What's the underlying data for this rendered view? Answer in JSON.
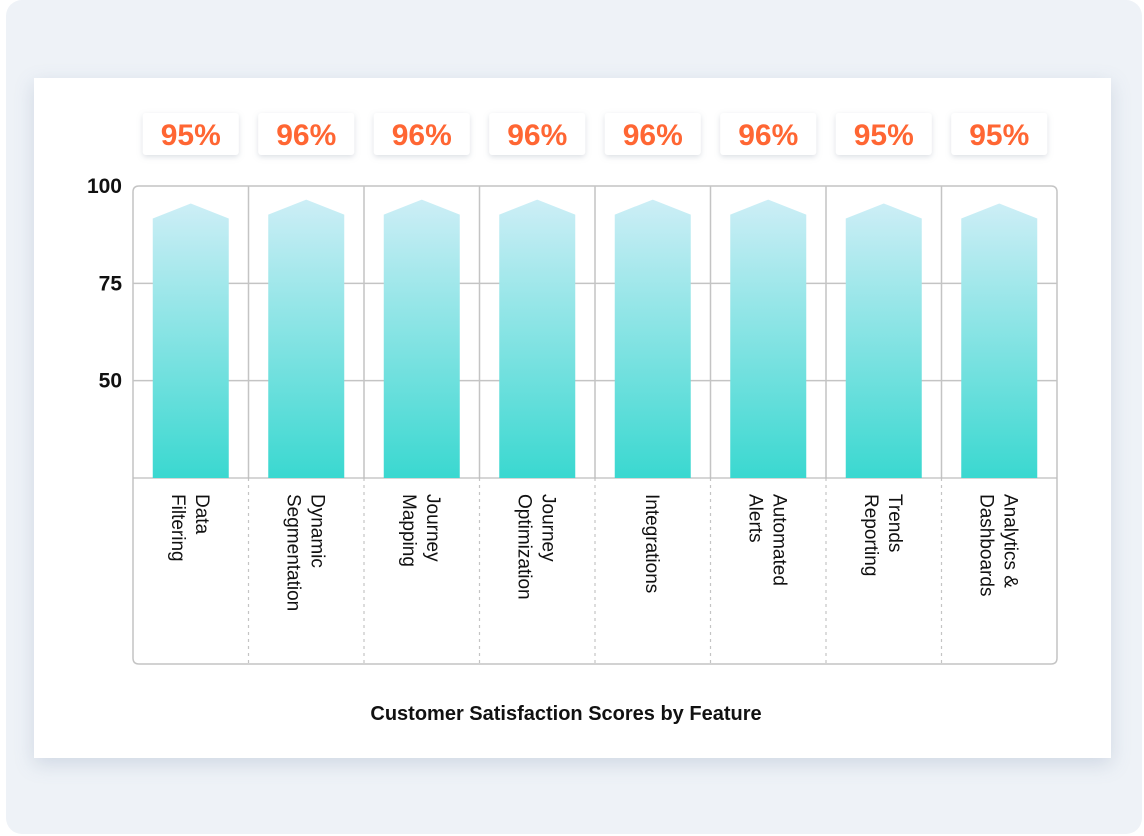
{
  "chart_data": {
    "type": "bar",
    "title": "Customer Satisfaction Scores by Feature",
    "categories": [
      [
        "Data",
        "Filtering"
      ],
      [
        "Dynamic",
        "Segmentation"
      ],
      [
        "Journey",
        "Mapping"
      ],
      [
        "Journey",
        "Optimization"
      ],
      [
        "Integrations"
      ],
      [
        "Automated",
        "Alerts"
      ],
      [
        "Trends",
        "Reporting"
      ],
      [
        "Analytics &",
        "Dashboards"
      ]
    ],
    "values": [
      95,
      96,
      96,
      96,
      96,
      96,
      95,
      95
    ],
    "value_labels": [
      "95%",
      "96%",
      "96%",
      "96%",
      "96%",
      "96%",
      "95%",
      "95%"
    ],
    "yticks": [
      "100",
      "75",
      "50"
    ],
    "ylim": [
      25,
      100
    ],
    "grid": true,
    "colors": {
      "bar_top": "#cdeef6",
      "bar_bottom": "#3ad8d0",
      "label": "#ff6633",
      "grid": "#c4c4c4"
    }
  }
}
